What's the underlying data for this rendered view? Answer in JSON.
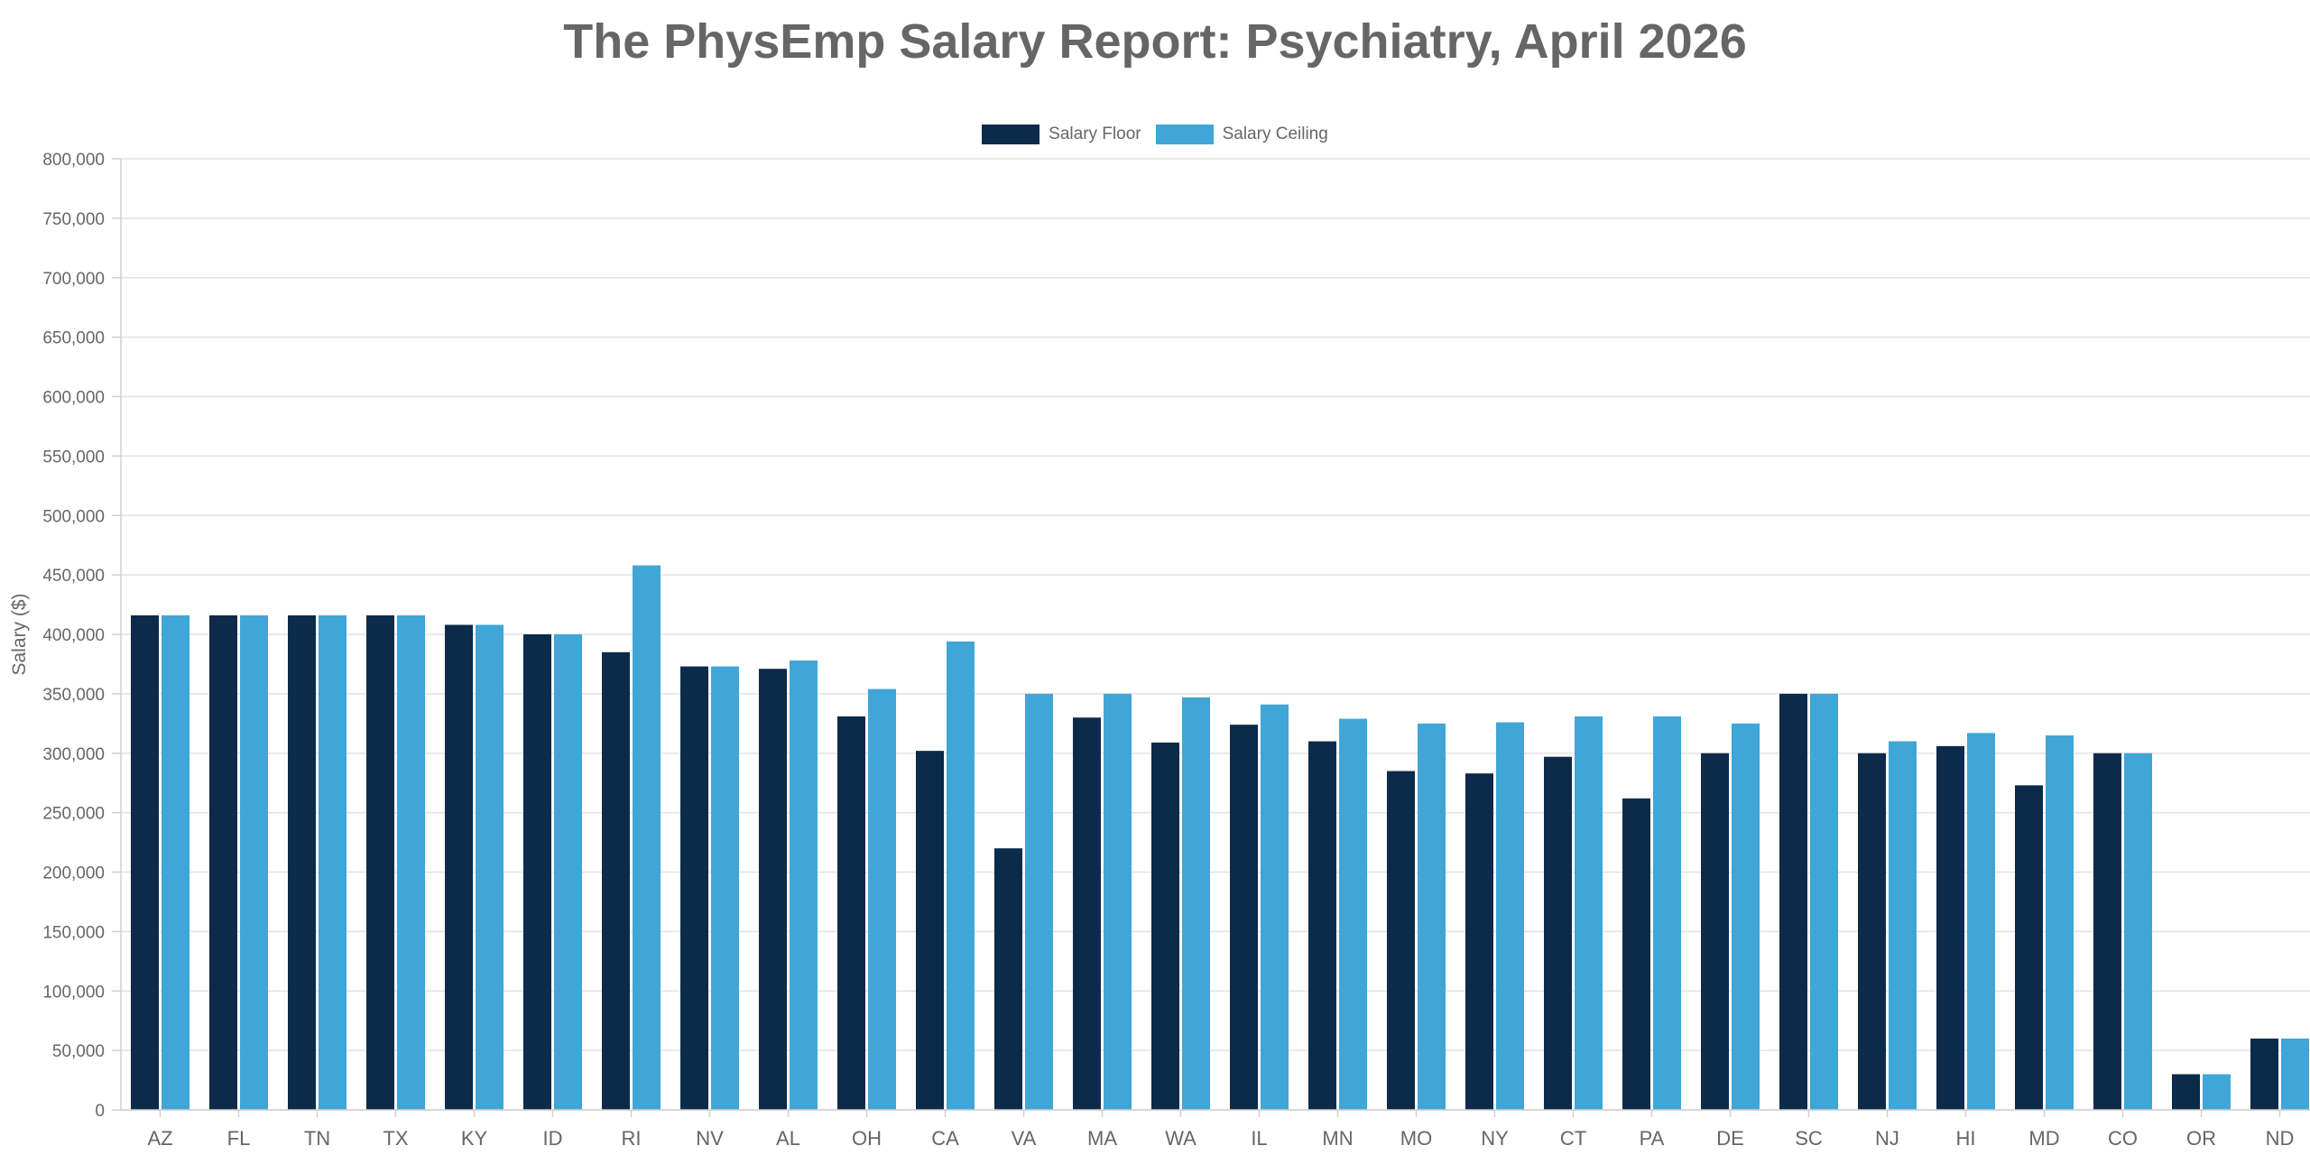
{
  "chart_data": {
    "type": "bar",
    "title": "The PhysEmp Salary Report: Psychiatry, April 2026",
    "xlabel": "",
    "ylabel": "Salary ($)",
    "ylim": [
      0,
      800000
    ],
    "yticks": [
      0,
      50000,
      100000,
      150000,
      200000,
      250000,
      300000,
      350000,
      400000,
      450000,
      500000,
      550000,
      600000,
      650000,
      700000,
      750000,
      800000
    ],
    "ytick_labels": [
      "0",
      "50,000",
      "100,000",
      "150,000",
      "200,000",
      "250,000",
      "300,000",
      "350,000",
      "400,000",
      "450,000",
      "500,000",
      "550,000",
      "600,000",
      "650,000",
      "700,000",
      "750,000",
      "800,000"
    ],
    "grid": true,
    "legend_position": "top-center",
    "categories": [
      "AZ",
      "FL",
      "TN",
      "TX",
      "KY",
      "ID",
      "RI",
      "NV",
      "AL",
      "OH",
      "CA",
      "VA",
      "MA",
      "WA",
      "IL",
      "MN",
      "MO",
      "NY",
      "CT",
      "PA",
      "DE",
      "SC",
      "NJ",
      "HI",
      "MD",
      "CO",
      "OR",
      "ND"
    ],
    "series": [
      {
        "name": "Salary Floor",
        "color": "#0c2a4a",
        "values": [
          416000,
          416000,
          416000,
          416000,
          408000,
          400000,
          385000,
          373000,
          371000,
          331000,
          302000,
          220000,
          330000,
          309000,
          324000,
          310000,
          285000,
          283000,
          297000,
          262000,
          300000,
          350000,
          300000,
          306000,
          273000,
          300000,
          30000,
          60000
        ]
      },
      {
        "name": "Salary Ceiling",
        "color": "#3fa6d7",
        "values": [
          416000,
          416000,
          416000,
          416000,
          408000,
          400000,
          458000,
          373000,
          378000,
          354000,
          394000,
          350000,
          350000,
          347000,
          341000,
          329000,
          325000,
          326000,
          331000,
          331000,
          325000,
          350000,
          310000,
          317000,
          315000,
          300000,
          30000,
          60000
        ]
      }
    ]
  }
}
